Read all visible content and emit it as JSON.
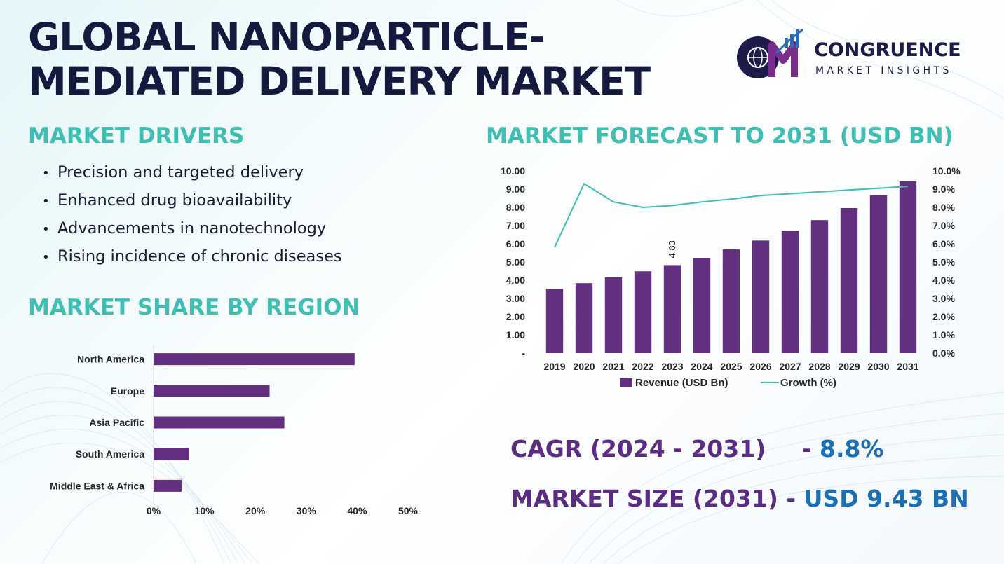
{
  "title": {
    "line1": "GLOBAL NANOPARTICLE-",
    "line2": "MEDIATED DELIVERY MARKET"
  },
  "logo": {
    "name": "CONGRUENCE",
    "subtitle": "MARKET INSIGHTS",
    "icon": "cmi-logo-icon"
  },
  "drivers": {
    "heading": "MARKET DRIVERS",
    "items": [
      "Precision and targeted delivery",
      "Enhanced drug bioavailability",
      "Advancements in nanotechnology",
      "Rising incidence of chronic diseases"
    ]
  },
  "region": {
    "heading": "MARKET SHARE BY REGION"
  },
  "forecast": {
    "heading": "MARKET FORECAST TO 2031 (USD BN)"
  },
  "stats": {
    "cagr_label": "CAGR (2024 - 2031)",
    "cagr_sep": "-",
    "cagr_value": "8.8%",
    "size_label": "MARKET SIZE (2031)",
    "size_sep": "-",
    "size_value": "USD 9.43 BN"
  },
  "colors": {
    "bar": "#63307f",
    "line": "#3bbfb5",
    "heading": "#3fbfb3",
    "title": "#141a3d",
    "stat_label": "#5a2d82",
    "stat_value": "#1a6fb5"
  },
  "chart_data": [
    {
      "type": "bar",
      "orientation": "horizontal",
      "categories": [
        "North America",
        "Europe",
        "Asia Pacific",
        "South America",
        "Middle East & Africa"
      ],
      "values": [
        39.5,
        22.8,
        25.7,
        7.0,
        5.5
      ],
      "xlim": [
        0,
        50
      ],
      "xticks": [
        "0%",
        "10%",
        "20%",
        "30%",
        "40%",
        "50%"
      ],
      "unit": "%"
    },
    {
      "type": "bar+line",
      "categories": [
        "2019",
        "2020",
        "2021",
        "2022",
        "2023",
        "2024",
        "2025",
        "2026",
        "2027",
        "2028",
        "2029",
        "2030",
        "2031"
      ],
      "series": [
        {
          "name": "Revenue (USD Bn)",
          "type": "bar",
          "axis": "left",
          "values": [
            3.52,
            3.84,
            4.16,
            4.49,
            4.83,
            5.23,
            5.69,
            6.18,
            6.72,
            7.3,
            7.96,
            8.67,
            9.43
          ]
        },
        {
          "name": "Growth (%)",
          "type": "line",
          "axis": "right",
          "values": [
            5.8,
            9.3,
            8.3,
            8.0,
            8.1,
            8.3,
            8.45,
            8.65,
            8.75,
            8.85,
            8.95,
            9.05,
            9.15
          ]
        }
      ],
      "data_labels": [
        {
          "category": "2023",
          "text": "4.83"
        }
      ],
      "ylim_left": [
        0,
        10
      ],
      "ylim_right": [
        0,
        10
      ],
      "yticks_left": [
        "-",
        "1.00",
        "2.00",
        "3.00",
        "4.00",
        "5.00",
        "6.00",
        "7.00",
        "8.00",
        "9.00",
        "10.00"
      ],
      "yticks_right": [
        "0.0%",
        "1.0%",
        "2.0%",
        "3.0%",
        "4.0%",
        "5.0%",
        "6.0%",
        "7.0%",
        "8.0%",
        "9.0%",
        "10.0%"
      ],
      "legend_position": "bottom"
    }
  ]
}
